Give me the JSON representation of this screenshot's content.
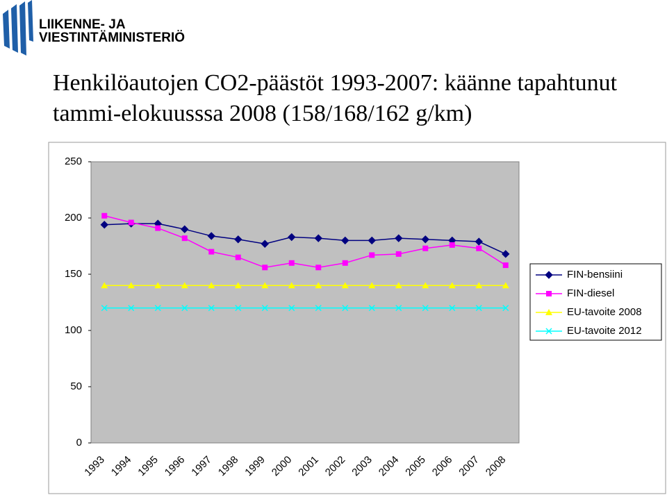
{
  "logo": {
    "line1": "LIIKENNE- JA",
    "line2": "VIESTINTÄMINISTERIÖ"
  },
  "chart_data": {
    "type": "line",
    "title": "Henkilöautojen CO2-päästöt 1993-2007: käänne tapahtunut tammi-elokuusssa 2008 (158/168/162 g/km)",
    "categories": [
      "1993",
      "1994",
      "1995",
      "1996",
      "1997",
      "1998",
      "1999",
      "2000",
      "2001",
      "2002",
      "2003",
      "2004",
      "2005",
      "2006",
      "2007",
      "2008"
    ],
    "series": [
      {
        "name": "FIN-bensiini",
        "color": "#000080",
        "marker": "diamond",
        "values": [
          194,
          195,
          195,
          190,
          184,
          181,
          177,
          183,
          182,
          180,
          180,
          182,
          181,
          180,
          179,
          168
        ]
      },
      {
        "name": "FIN-diesel",
        "color": "#ff00ff",
        "marker": "square",
        "values": [
          202,
          196,
          191,
          182,
          170,
          165,
          156,
          160,
          156,
          160,
          167,
          168,
          173,
          176,
          173,
          158
        ]
      },
      {
        "name": "EU-tavoite 2008",
        "color": "#ffff00",
        "marker": "triangle",
        "values": [
          140,
          140,
          140,
          140,
          140,
          140,
          140,
          140,
          140,
          140,
          140,
          140,
          140,
          140,
          140,
          140
        ]
      },
      {
        "name": "EU-tavoite 2012",
        "color": "#00ffff",
        "marker": "x",
        "values": [
          120,
          120,
          120,
          120,
          120,
          120,
          120,
          120,
          120,
          120,
          120,
          120,
          120,
          120,
          120,
          120
        ]
      }
    ],
    "ylim": [
      0,
      250
    ],
    "yticks": [
      0,
      50,
      100,
      150,
      200,
      250
    ],
    "grid": false,
    "legend": "right"
  }
}
